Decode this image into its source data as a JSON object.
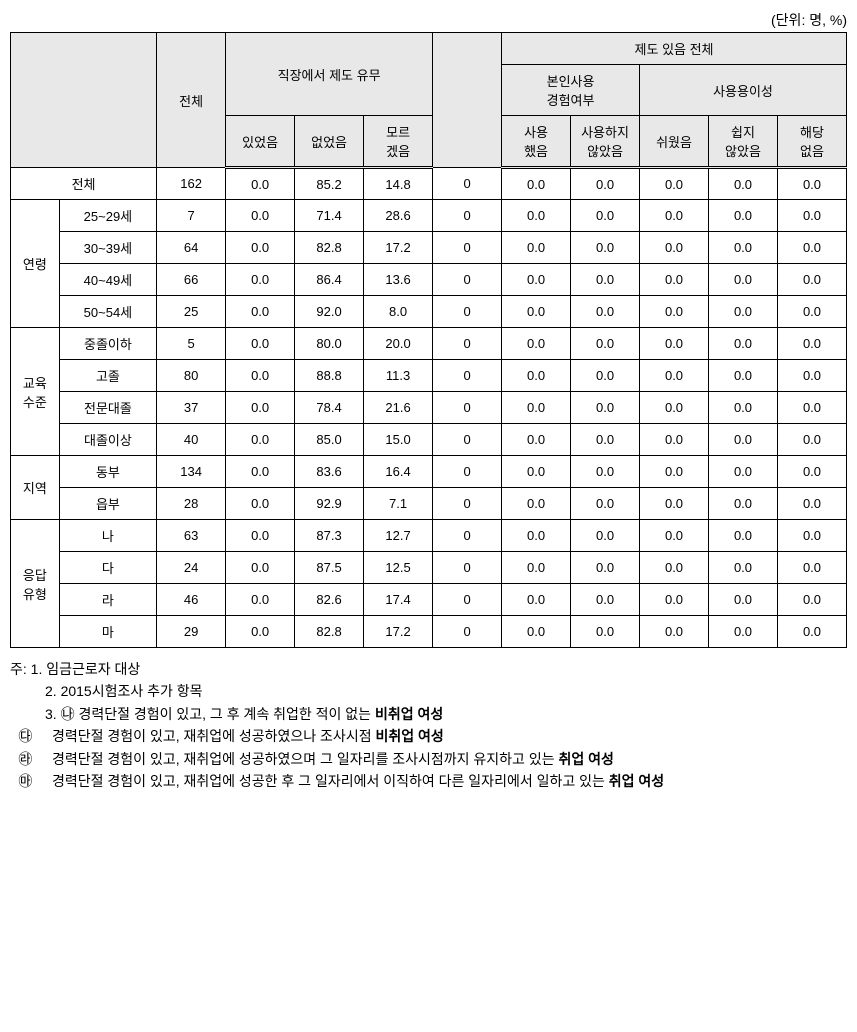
{
  "unit_label": "(단위: 명, %)",
  "headers": {
    "total": "전체",
    "workplace_system": "직장에서 제도 유무",
    "system_exists_all": "제도 있음 전체",
    "personal_use": "본인사용\n경험여부",
    "ease_of_use": "사용용이성",
    "had": "있었음",
    "not_had": "없었음",
    "dont_know": "모르\n겠음",
    "used": "사용\n했음",
    "not_used": "사용하지\n않았음",
    "easy": "쉬웠음",
    "not_easy": "쉽지\n않았음",
    "na": "해당\n없음",
    "blank": ""
  },
  "row_groups": [
    {
      "label": "전체",
      "span_all": true,
      "rows": [
        {
          "label": "",
          "v": [
            "162",
            "0.0",
            "85.2",
            "14.8",
            "0",
            "0.0",
            "0.0",
            "0.0",
            "0.0",
            "0.0"
          ]
        }
      ]
    },
    {
      "label": "연령",
      "rows": [
        {
          "label": "25~29세",
          "v": [
            "7",
            "0.0",
            "71.4",
            "28.6",
            "0",
            "0.0",
            "0.0",
            "0.0",
            "0.0",
            "0.0"
          ]
        },
        {
          "label": "30~39세",
          "v": [
            "64",
            "0.0",
            "82.8",
            "17.2",
            "0",
            "0.0",
            "0.0",
            "0.0",
            "0.0",
            "0.0"
          ]
        },
        {
          "label": "40~49세",
          "v": [
            "66",
            "0.0",
            "86.4",
            "13.6",
            "0",
            "0.0",
            "0.0",
            "0.0",
            "0.0",
            "0.0"
          ]
        },
        {
          "label": "50~54세",
          "v": [
            "25",
            "0.0",
            "92.0",
            "8.0",
            "0",
            "0.0",
            "0.0",
            "0.0",
            "0.0",
            "0.0"
          ]
        }
      ]
    },
    {
      "label": "교육\n수준",
      "rows": [
        {
          "label": "중졸이하",
          "v": [
            "5",
            "0.0",
            "80.0",
            "20.0",
            "0",
            "0.0",
            "0.0",
            "0.0",
            "0.0",
            "0.0"
          ]
        },
        {
          "label": "고졸",
          "v": [
            "80",
            "0.0",
            "88.8",
            "11.3",
            "0",
            "0.0",
            "0.0",
            "0.0",
            "0.0",
            "0.0"
          ]
        },
        {
          "label": "전문대졸",
          "v": [
            "37",
            "0.0",
            "78.4",
            "21.6",
            "0",
            "0.0",
            "0.0",
            "0.0",
            "0.0",
            "0.0"
          ]
        },
        {
          "label": "대졸이상",
          "v": [
            "40",
            "0.0",
            "85.0",
            "15.0",
            "0",
            "0.0",
            "0.0",
            "0.0",
            "0.0",
            "0.0"
          ]
        }
      ]
    },
    {
      "label": "지역",
      "rows": [
        {
          "label": "동부",
          "v": [
            "134",
            "0.0",
            "83.6",
            "16.4",
            "0",
            "0.0",
            "0.0",
            "0.0",
            "0.0",
            "0.0"
          ]
        },
        {
          "label": "읍부",
          "v": [
            "28",
            "0.0",
            "92.9",
            "7.1",
            "0",
            "0.0",
            "0.0",
            "0.0",
            "0.0",
            "0.0"
          ]
        }
      ]
    },
    {
      "label": "응답\n유형",
      "rows": [
        {
          "label": "나",
          "v": [
            "63",
            "0.0",
            "87.3",
            "12.7",
            "0",
            "0.0",
            "0.0",
            "0.0",
            "0.0",
            "0.0"
          ]
        },
        {
          "label": "다",
          "v": [
            "24",
            "0.0",
            "87.5",
            "12.5",
            "0",
            "0.0",
            "0.0",
            "0.0",
            "0.0",
            "0.0"
          ]
        },
        {
          "label": "라",
          "v": [
            "46",
            "0.0",
            "82.6",
            "17.4",
            "0",
            "0.0",
            "0.0",
            "0.0",
            "0.0",
            "0.0"
          ]
        },
        {
          "label": "마",
          "v": [
            "29",
            "0.0",
            "82.8",
            "17.2",
            "0",
            "0.0",
            "0.0",
            "0.0",
            "0.0",
            "0.0"
          ]
        }
      ]
    }
  ],
  "notes": {
    "prefix": "주: ",
    "lines": [
      "1. 임금근로자 대상",
      "2. 2015시험조사 추가 항목",
      "3. ㉯ 경력단절 경험이 있고, 그 후 계속 취업한 적이 없는 "
    ],
    "line3_bold": "비취업 여성",
    "subs": [
      {
        "mark": "㉰",
        "text": "경력단절 경험이 있고, 재취업에 성공하였으나 조사시점 ",
        "bold": "비취업 여성"
      },
      {
        "mark": "㉱",
        "text": "경력단절 경험이 있고, 재취업에 성공하였으며 그 일자리를 조사시점까지 유지하고 있는",
        "bold": "취업 여성"
      },
      {
        "mark": "㉲",
        "text": "경력단절 경험이 있고, 재취업에 성공한 후 그 일자리에서 이직하여 다른 일자리에서 일하고 있는 ",
        "bold": "취업 여성"
      }
    ]
  },
  "colors": {
    "header_bg": "#e8e8e8",
    "border": "#000000",
    "bg": "#ffffff",
    "text": "#000000"
  }
}
